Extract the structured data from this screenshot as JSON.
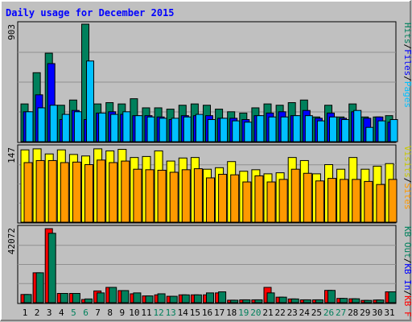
{
  "chart_data": [
    {
      "type": "bar",
      "title": "Daily usage for December 2015",
      "ymax_label": "903",
      "legend": [
        "Pages",
        "Files",
        "Hits"
      ],
      "categories": [
        "1",
        "2",
        "3",
        "4",
        "5",
        "6",
        "7",
        "8",
        "9",
        "10",
        "11",
        "12",
        "13",
        "14",
        "15",
        "16",
        "17",
        "18",
        "19",
        "20",
        "21",
        "22",
        "23",
        "24",
        "25",
        "26",
        "27",
        "28",
        "29",
        "30",
        "31"
      ],
      "weekend_days": [
        "5",
        "6",
        "12",
        "13",
        "19",
        "20",
        "26",
        "27"
      ],
      "series": [
        {
          "name": "Hits",
          "color": "#00805c",
          "values": [
            290,
            530,
            680,
            280,
            320,
            903,
            290,
            300,
            290,
            330,
            260,
            260,
            250,
            280,
            290,
            280,
            250,
            230,
            220,
            260,
            290,
            280,
            300,
            320,
            190,
            280,
            190,
            290,
            190,
            190,
            200
          ]
        },
        {
          "name": "Files",
          "color": "#0000ff",
          "values": [
            230,
            360,
            600,
            170,
            240,
            170,
            220,
            230,
            210,
            200,
            200,
            190,
            170,
            200,
            200,
            200,
            180,
            180,
            170,
            200,
            220,
            230,
            200,
            240,
            180,
            220,
            180,
            230,
            180,
            190,
            150
          ]
        },
        {
          "name": "Pages",
          "color": "#00c0ff",
          "values": [
            230,
            260,
            280,
            210,
            230,
            620,
            220,
            210,
            230,
            200,
            190,
            180,
            180,
            190,
            210,
            170,
            180,
            160,
            150,
            200,
            190,
            190,
            200,
            200,
            160,
            190,
            170,
            240,
            110,
            160,
            170
          ]
        }
      ],
      "ymax": 903
    },
    {
      "type": "bar",
      "ymax_label": "147",
      "legend": [
        "Visits",
        "Sites"
      ],
      "series": [
        {
          "name": "Visits",
          "color": "#ffff00",
          "values": [
            142,
            144,
            134,
            142,
            133,
            130,
            144,
            140,
            143,
            127,
            129,
            140,
            120,
            126,
            127,
            104,
            107,
            119,
            100,
            103,
            95,
            97,
            127,
            121,
            95,
            113,
            104,
            127,
            104,
            110,
            115
          ]
        },
        {
          "name": "Sites",
          "color": "#ff9900",
          "values": [
            117,
            121,
            121,
            117,
            118,
            113,
            122,
            117,
            120,
            104,
            103,
            102,
            98,
            103,
            105,
            87,
            94,
            93,
            79,
            91,
            79,
            84,
            104,
            96,
            81,
            86,
            84,
            84,
            80,
            74,
            84
          ]
        }
      ],
      "ymax": 147
    },
    {
      "type": "bar",
      "ymax_label": "42072",
      "legend": [
        "KB F",
        "KB In",
        "KB Out"
      ],
      "series": [
        {
          "name": "KB F",
          "color": "#ff0000",
          "values": [
            4600,
            16800,
            41600,
            5200,
            5200,
            1800,
            6600,
            8600,
            6800,
            5000,
            3800,
            4400,
            3600,
            4400,
            4400,
            4400,
            5500,
            1400,
            1600,
            1600,
            8600,
            3100,
            2100,
            1600,
            1600,
            6900,
            2400,
            2200,
            1300,
            1500,
            6100
          ]
        },
        {
          "name": "KB Out",
          "color": "#00805c",
          "values": [
            4600,
            16800,
            39000,
            5200,
            5200,
            2100,
            5500,
            8600,
            6800,
            5500,
            3800,
            5000,
            3600,
            4400,
            4400,
            5500,
            6100,
            1400,
            1600,
            1600,
            5500,
            3100,
            2100,
            1600,
            1600,
            6900,
            2400,
            2200,
            1300,
            1500,
            6100
          ]
        }
      ],
      "ymax": 42072
    }
  ]
}
